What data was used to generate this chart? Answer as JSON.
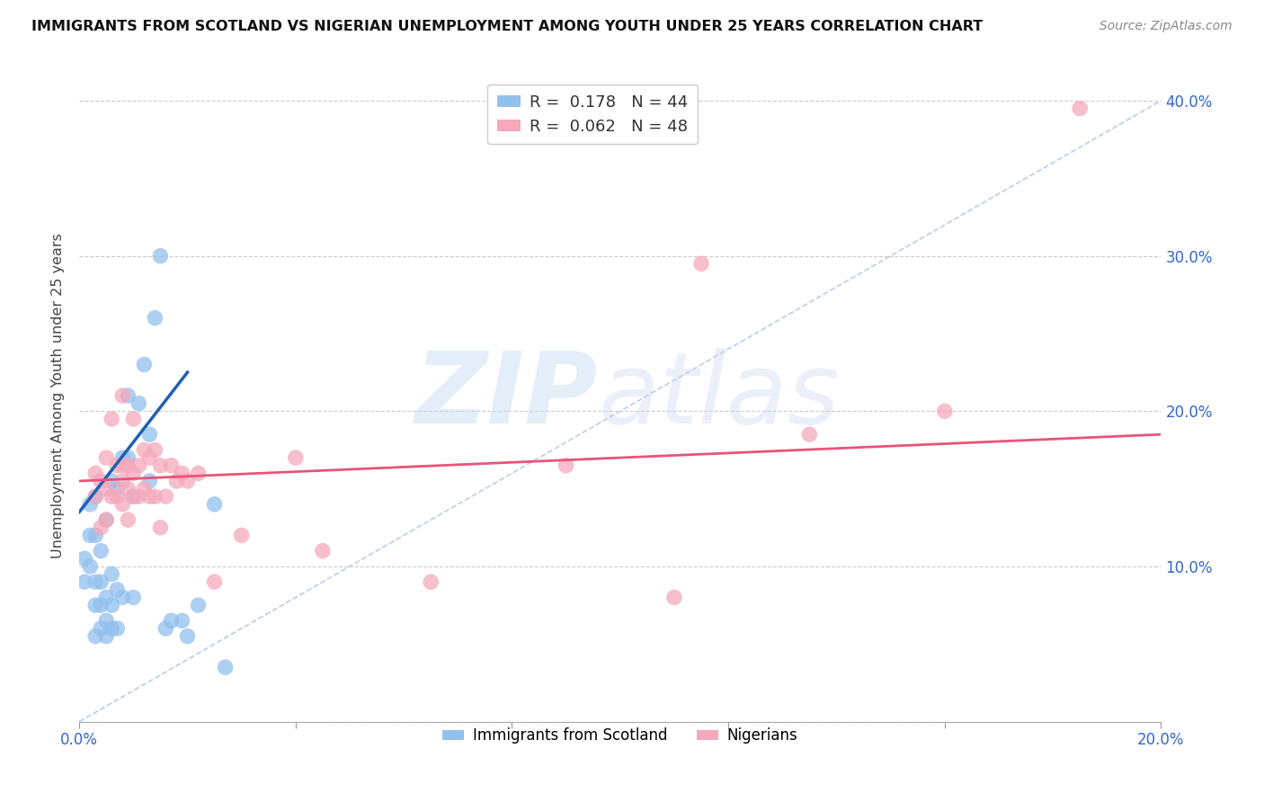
{
  "title": "IMMIGRANTS FROM SCOTLAND VS NIGERIAN UNEMPLOYMENT AMONG YOUTH UNDER 25 YEARS CORRELATION CHART",
  "source": "Source: ZipAtlas.com",
  "ylabel": "Unemployment Among Youth under 25 years",
  "xlim": [
    0.0,
    0.2
  ],
  "ylim": [
    0.0,
    0.42
  ],
  "xticks": [
    0.0,
    0.04,
    0.08,
    0.12,
    0.16,
    0.2
  ],
  "yticks": [
    0.0,
    0.1,
    0.2,
    0.3,
    0.4
  ],
  "xtick_labels": [
    "0.0%",
    "",
    "",
    "",
    "",
    "20.0%"
  ],
  "ytick_labels": [
    "",
    "10.0%",
    "20.0%",
    "30.0%",
    "40.0%"
  ],
  "legend_r1": "R =  0.178",
  "legend_n1": "N = 44",
  "legend_r2": "R =  0.062",
  "legend_n2": "N = 48",
  "scotland_color": "#92c0ed",
  "nigerian_color": "#f5a8bb",
  "scotland_line_color": "#2060b0",
  "nigerian_line_color": "#e8547a",
  "dashed_line_color": "#b8cfe8",
  "scotland_x": [
    0.001,
    0.001,
    0.002,
    0.002,
    0.002,
    0.003,
    0.003,
    0.003,
    0.003,
    0.003,
    0.004,
    0.004,
    0.004,
    0.004,
    0.005,
    0.005,
    0.005,
    0.005,
    0.006,
    0.006,
    0.006,
    0.006,
    0.007,
    0.007,
    0.007,
    0.008,
    0.008,
    0.009,
    0.009,
    0.01,
    0.01,
    0.011,
    0.012,
    0.013,
    0.013,
    0.014,
    0.015,
    0.016,
    0.017,
    0.019,
    0.02,
    0.022,
    0.025,
    0.027
  ],
  "scotland_y": [
    0.09,
    0.105,
    0.1,
    0.12,
    0.14,
    0.055,
    0.075,
    0.09,
    0.12,
    0.145,
    0.06,
    0.075,
    0.09,
    0.11,
    0.055,
    0.065,
    0.08,
    0.13,
    0.06,
    0.075,
    0.095,
    0.155,
    0.06,
    0.085,
    0.15,
    0.08,
    0.17,
    0.17,
    0.21,
    0.08,
    0.145,
    0.205,
    0.23,
    0.155,
    0.185,
    0.26,
    0.3,
    0.06,
    0.065,
    0.065,
    0.055,
    0.075,
    0.14,
    0.035
  ],
  "nigerian_x": [
    0.003,
    0.003,
    0.004,
    0.004,
    0.005,
    0.005,
    0.005,
    0.006,
    0.006,
    0.007,
    0.007,
    0.008,
    0.008,
    0.008,
    0.008,
    0.009,
    0.009,
    0.009,
    0.01,
    0.01,
    0.01,
    0.011,
    0.011,
    0.012,
    0.012,
    0.013,
    0.013,
    0.014,
    0.014,
    0.015,
    0.015,
    0.016,
    0.017,
    0.018,
    0.019,
    0.02,
    0.022,
    0.025,
    0.03,
    0.04,
    0.045,
    0.065,
    0.09,
    0.11,
    0.115,
    0.135,
    0.16,
    0.185
  ],
  "nigerian_y": [
    0.145,
    0.16,
    0.125,
    0.155,
    0.13,
    0.15,
    0.17,
    0.145,
    0.195,
    0.145,
    0.165,
    0.14,
    0.155,
    0.165,
    0.21,
    0.13,
    0.15,
    0.165,
    0.145,
    0.16,
    0.195,
    0.145,
    0.165,
    0.15,
    0.175,
    0.145,
    0.17,
    0.145,
    0.175,
    0.125,
    0.165,
    0.145,
    0.165,
    0.155,
    0.16,
    0.155,
    0.16,
    0.09,
    0.12,
    0.17,
    0.11,
    0.09,
    0.165,
    0.08,
    0.295,
    0.185,
    0.2,
    0.395
  ],
  "scotland_trend": [
    0.0,
    0.02
  ],
  "scotland_trend_y": [
    0.135,
    0.225
  ],
  "nigerian_trend": [
    0.0,
    0.2
  ],
  "nigerian_trend_y": [
    0.155,
    0.185
  ]
}
